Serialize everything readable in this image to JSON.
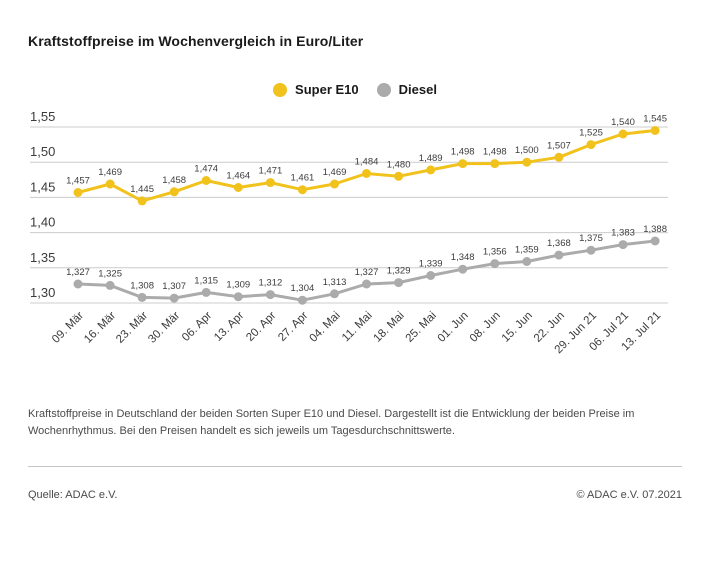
{
  "title": "Kraftstoffpreise im Wochenvergleich in Euro/Liter",
  "description": "Kraftstoffpreise in Deutschland der beiden Sorten Super E10 und Diesel. Dargestellt ist die Entwicklung der beiden Preise im Wochenrhythmus. Bei den Preisen handelt es sich jeweils um Tagesdurchschnittswerte.",
  "footer": {
    "source": "Quelle: ADAC e.V.",
    "copyright": "© ADAC e.V. 07.2021"
  },
  "colors": {
    "super_e10": "#F2C21C",
    "diesel": "#ABABAB",
    "grid": "#CCCCCC",
    "tick_text": "#3A3A3A",
    "value_label_text": "#3D3D3D"
  },
  "chart_data": {
    "type": "line",
    "title": "Kraftstoffpreise im Wochenvergleich in Euro/Liter",
    "unit": "Euro/Liter",
    "grid": "horizontal",
    "legend_position": "top-center",
    "ylim": [
      1.3,
      1.55
    ],
    "y_ticks": [
      "1,55",
      "1,50",
      "1,45",
      "1,40",
      "1,35",
      "1,30"
    ],
    "categories": [
      "09. Mär",
      "16. Mär",
      "23. Mär",
      "30. Mär",
      "06. Apr",
      "13. Apr",
      "20. Apr",
      "27. Apr",
      "04. Mai",
      "11. Mai",
      "18. Mai",
      "25. Mai",
      "01. Jun",
      "08. Jun",
      "15. Jun",
      "22. Jun",
      "29. Jun 21",
      "06. Jul 21",
      "13. Jul 21"
    ],
    "series": [
      {
        "name": "Super E10",
        "color": "#F2C21C",
        "values": [
          1.457,
          1.469,
          1.445,
          1.458,
          1.474,
          1.464,
          1.471,
          1.461,
          1.469,
          1.484,
          1.48,
          1.489,
          1.498,
          1.498,
          1.5,
          1.507,
          1.525,
          1.54,
          1.545
        ],
        "labels": [
          "1,457",
          "1,469",
          "1,445",
          "1,458",
          "1,474",
          "1,464",
          "1,471",
          "1,461",
          "1,469",
          "1,484",
          "1,480",
          "1,489",
          "1,498",
          "1,498",
          "1,500",
          "1,507",
          "1,525",
          "1,540",
          "1,545"
        ]
      },
      {
        "name": "Diesel",
        "color": "#ABABAB",
        "values": [
          1.327,
          1.325,
          1.308,
          1.307,
          1.315,
          1.309,
          1.312,
          1.304,
          1.313,
          1.327,
          1.329,
          1.339,
          1.348,
          1.356,
          1.359,
          1.368,
          1.375,
          1.383,
          1.388
        ],
        "labels": [
          "1,327",
          "1,325",
          "1,308",
          "1,307",
          "1,315",
          "1,309",
          "1,312",
          "1,304",
          "1,313",
          "1,327",
          "1,329",
          "1,339",
          "1,348",
          "1,356",
          "1,359",
          "1,368",
          "1,375",
          "1,383",
          "1,388"
        ]
      }
    ]
  }
}
